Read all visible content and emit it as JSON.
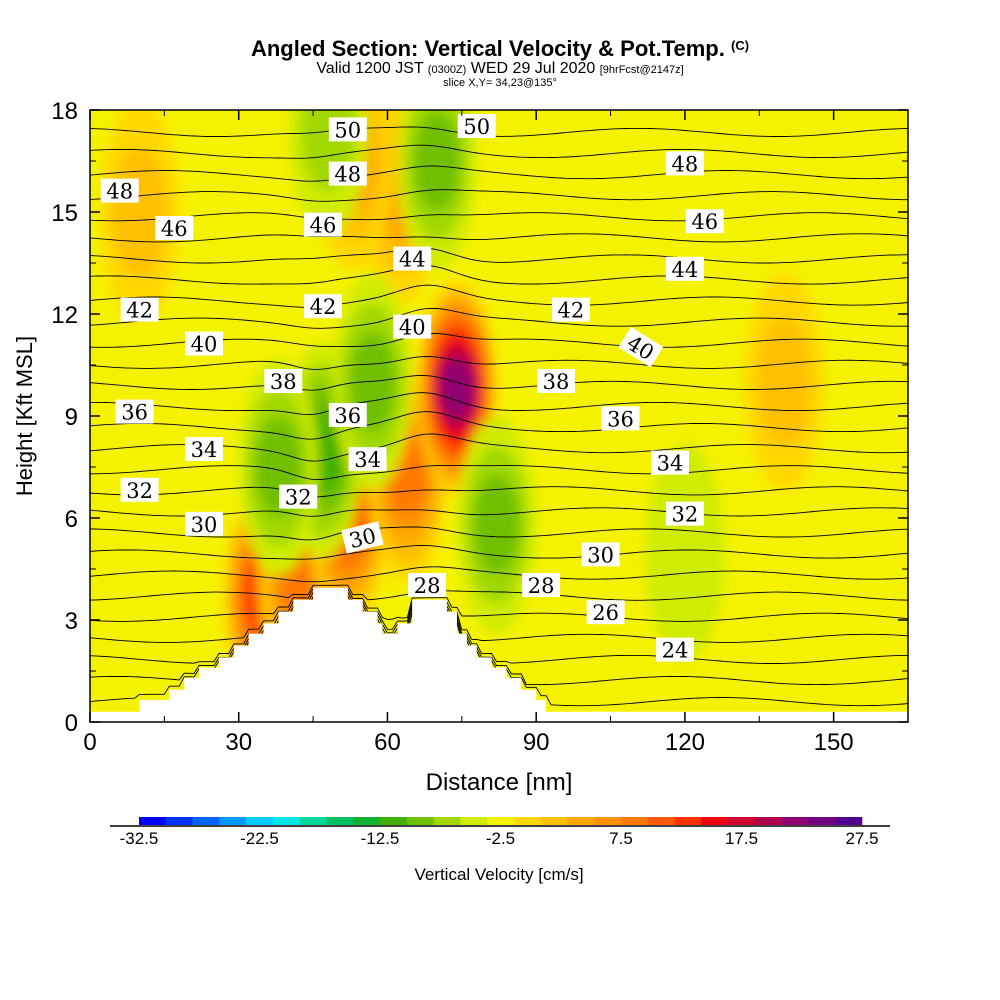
{
  "title": {
    "main": "Angled Section: Vertical Velocity & Pot.Temp.",
    "main_suffix": "(C)",
    "valid_prefix": "Valid 1200 JST",
    "valid_utc": "(0300Z)",
    "valid_date": "WED 29 Jul 2020",
    "forecast": "[9hrFcst@2147z]",
    "slice": "slice X,Y= 34,23@135°"
  },
  "colors": {
    "background_field": "#f5f200",
    "terrain": "#ffffff",
    "contour": "#000000"
  },
  "chart_data": {
    "type": "heatmap",
    "xlabel": "Distance [nm]",
    "ylabel": "Height [Kft MSL]",
    "xlim": [
      0,
      165
    ],
    "ylim": [
      0,
      18
    ],
    "x_ticks": [
      "0",
      "30",
      "60",
      "90",
      "120",
      "150"
    ],
    "y_ticks": [
      "0",
      "3",
      "6",
      "9",
      "12",
      "15",
      "18"
    ],
    "x_tick_values": [
      0,
      30,
      60,
      90,
      120,
      150
    ],
    "y_tick_values": [
      0,
      3,
      6,
      9,
      12,
      15,
      18
    ],
    "colorbar": {
      "label": "Vertical Velocity [cm/s]",
      "min": -32.5,
      "max": 27.5,
      "step": 2.5,
      "labels": [
        "-32.5",
        "-22.5",
        "-12.5",
        "-2.5",
        "7.5",
        "17.5",
        "27.5"
      ],
      "label_values": [
        -32.5,
        -22.5,
        -12.5,
        -2.5,
        7.5,
        17.5,
        27.5
      ],
      "colors": [
        "#0000ff",
        "#0033ff",
        "#0066ff",
        "#0099ff",
        "#00ccff",
        "#00e5e5",
        "#00d8a0",
        "#00c060",
        "#10b030",
        "#40b000",
        "#70c000",
        "#a0d800",
        "#d0ec00",
        "#f5f200",
        "#ffd800",
        "#ffc000",
        "#ffa800",
        "#ff9000",
        "#ff7800",
        "#ff5a00",
        "#ff3000",
        "#f00010",
        "#d00030",
        "#b00050",
        "#900070",
        "#700080",
        "#500090"
      ]
    },
    "velocity_features": [
      {
        "x": 35,
        "y": 3.7,
        "value": 17.5
      },
      {
        "x": 42,
        "y": 4.3,
        "value": 12.5
      },
      {
        "x": 52,
        "y": 6.0,
        "value": 15.0
      },
      {
        "x": 64,
        "y": 7.3,
        "value": 12.5
      },
      {
        "x": 74,
        "y": 9.8,
        "value": 27.5
      },
      {
        "x": 63,
        "y": 15.5,
        "value": 7.5
      },
      {
        "x": 53,
        "y": 16.5,
        "value": 7.5
      },
      {
        "x": 10,
        "y": 15.0,
        "value": 5.0
      },
      {
        "x": 140,
        "y": 10.0,
        "value": 5.0
      },
      {
        "x": 47,
        "y": 8.0,
        "value": -10.0
      },
      {
        "x": 38,
        "y": 7.5,
        "value": -7.5
      },
      {
        "x": 57,
        "y": 10.0,
        "value": -7.5
      },
      {
        "x": 70,
        "y": 16.5,
        "value": -7.5
      },
      {
        "x": 48,
        "y": 17.5,
        "value": -5.0
      },
      {
        "x": 82,
        "y": 5.8,
        "value": -7.5
      },
      {
        "x": 120,
        "y": 5.0,
        "value": -2.5
      }
    ],
    "contour_levels": [
      24,
      26,
      28,
      30,
      32,
      34,
      36,
      38,
      40,
      42,
      44,
      46,
      48,
      50
    ],
    "contour_labels": [
      {
        "text": "50",
        "x": 52,
        "y": 17.4
      },
      {
        "text": "50",
        "x": 78,
        "y": 17.5
      },
      {
        "text": "48",
        "x": 6,
        "y": 15.6
      },
      {
        "text": "48",
        "x": 52,
        "y": 16.1
      },
      {
        "text": "48",
        "x": 120,
        "y": 16.4
      },
      {
        "text": "46",
        "x": 17,
        "y": 14.5
      },
      {
        "text": "46",
        "x": 47,
        "y": 14.6
      },
      {
        "text": "46",
        "x": 124,
        "y": 14.7
      },
      {
        "text": "44",
        "x": 65,
        "y": 13.6
      },
      {
        "text": "44",
        "x": 120,
        "y": 13.3
      },
      {
        "text": "42",
        "x": 10,
        "y": 12.1
      },
      {
        "text": "42",
        "x": 47,
        "y": 12.2
      },
      {
        "text": "42",
        "x": 97,
        "y": 12.1
      },
      {
        "text": "40",
        "x": 65,
        "y": 11.6
      },
      {
        "text": "40",
        "x": 23,
        "y": 11.1
      },
      {
        "text": "40",
        "x": 111,
        "y": 11.0
      },
      {
        "text": "38",
        "x": 39,
        "y": 10.0
      },
      {
        "text": "38",
        "x": 94,
        "y": 10.0
      },
      {
        "text": "36",
        "x": 9,
        "y": 9.1
      },
      {
        "text": "36",
        "x": 52,
        "y": 9.0
      },
      {
        "text": "36",
        "x": 107,
        "y": 8.9
      },
      {
        "text": "34",
        "x": 23,
        "y": 8.0
      },
      {
        "text": "34",
        "x": 56,
        "y": 7.7
      },
      {
        "text": "34",
        "x": 117,
        "y": 7.6
      },
      {
        "text": "32",
        "x": 10,
        "y": 6.8
      },
      {
        "text": "32",
        "x": 42,
        "y": 6.6
      },
      {
        "text": "32",
        "x": 120,
        "y": 6.1
      },
      {
        "text": "30",
        "x": 23,
        "y": 5.8
      },
      {
        "text": "30",
        "x": 55,
        "y": 5.4
      },
      {
        "text": "30",
        "x": 103,
        "y": 4.9
      },
      {
        "text": "28",
        "x": 68,
        "y": 4.0
      },
      {
        "text": "28",
        "x": 91,
        "y": 4.0
      },
      {
        "text": "26",
        "x": 104,
        "y": 3.2
      },
      {
        "text": "24",
        "x": 118,
        "y": 2.1
      }
    ],
    "terrain_profile": [
      [
        0,
        0.3
      ],
      [
        10,
        0.3
      ],
      [
        10,
        0.65
      ],
      [
        16,
        0.65
      ],
      [
        16,
        0.95
      ],
      [
        19,
        0.95
      ],
      [
        19,
        1.3
      ],
      [
        22,
        1.3
      ],
      [
        22,
        1.6
      ],
      [
        26,
        1.6
      ],
      [
        26,
        1.9
      ],
      [
        29,
        1.9
      ],
      [
        29,
        2.25
      ],
      [
        32,
        2.25
      ],
      [
        32,
        2.6
      ],
      [
        35,
        2.6
      ],
      [
        35,
        2.9
      ],
      [
        38,
        2.9
      ],
      [
        38,
        3.25
      ],
      [
        41,
        3.25
      ],
      [
        41,
        3.6
      ],
      [
        45,
        3.6
      ],
      [
        45,
        3.95
      ],
      [
        52,
        3.95
      ],
      [
        52,
        3.6
      ],
      [
        55,
        3.6
      ],
      [
        55,
        3.25
      ],
      [
        58,
        3.25
      ],
      [
        58,
        2.9
      ],
      [
        59,
        2.9
      ],
      [
        59,
        2.6
      ],
      [
        62,
        2.6
      ],
      [
        62,
        2.9
      ],
      [
        65,
        2.9
      ],
      [
        65,
        3.6
      ],
      [
        72,
        3.6
      ],
      [
        72,
        3.25
      ],
      [
        74,
        3.25
      ],
      [
        74,
        2.6
      ],
      [
        76,
        2.6
      ],
      [
        76,
        2.25
      ],
      [
        78,
        2.25
      ],
      [
        78,
        1.9
      ],
      [
        81,
        1.9
      ],
      [
        81,
        1.6
      ],
      [
        84,
        1.6
      ],
      [
        84,
        1.3
      ],
      [
        87,
        1.3
      ],
      [
        87,
        0.95
      ],
      [
        90,
        0.95
      ],
      [
        90,
        0.65
      ],
      [
        92,
        0.65
      ],
      [
        92,
        0.3
      ],
      [
        165,
        0.3
      ]
    ]
  }
}
